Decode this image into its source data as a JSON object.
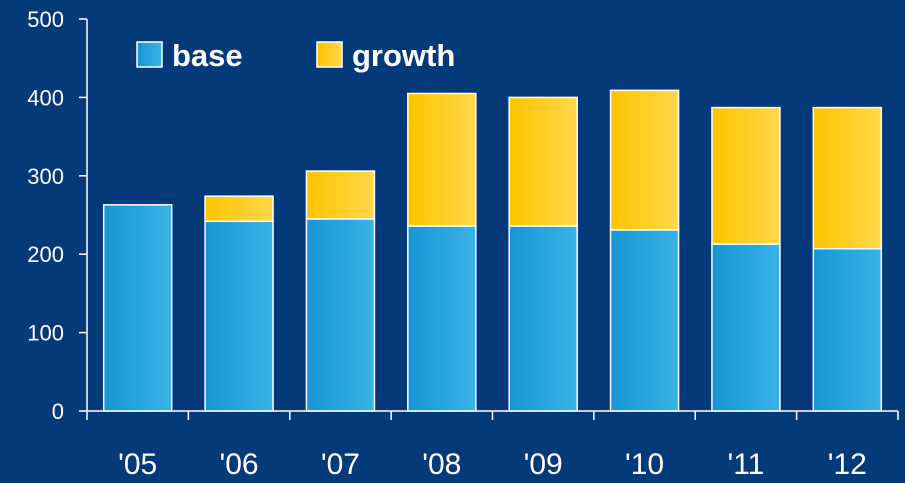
{
  "chart_data": {
    "type": "bar",
    "stacked": true,
    "title": "",
    "xlabel": "",
    "ylabel": "",
    "ylim": [
      0,
      500
    ],
    "yticks": [
      0,
      100,
      200,
      300,
      400,
      500
    ],
    "grid": false,
    "legend_position": "top-left",
    "categories": [
      "'05",
      "'06",
      "'07",
      "'08",
      "'09",
      "'10",
      "'11",
      "'12"
    ],
    "series": [
      {
        "name": "base",
        "color": "#2aa6dd",
        "values": [
          263,
          242,
          245,
          236,
          236,
          231,
          213,
          207
        ]
      },
      {
        "name": "growth",
        "color": "#ffc81e",
        "values": [
          0,
          32,
          61,
          169,
          164,
          178,
          174,
          180
        ]
      }
    ],
    "background": "#053a7a"
  }
}
